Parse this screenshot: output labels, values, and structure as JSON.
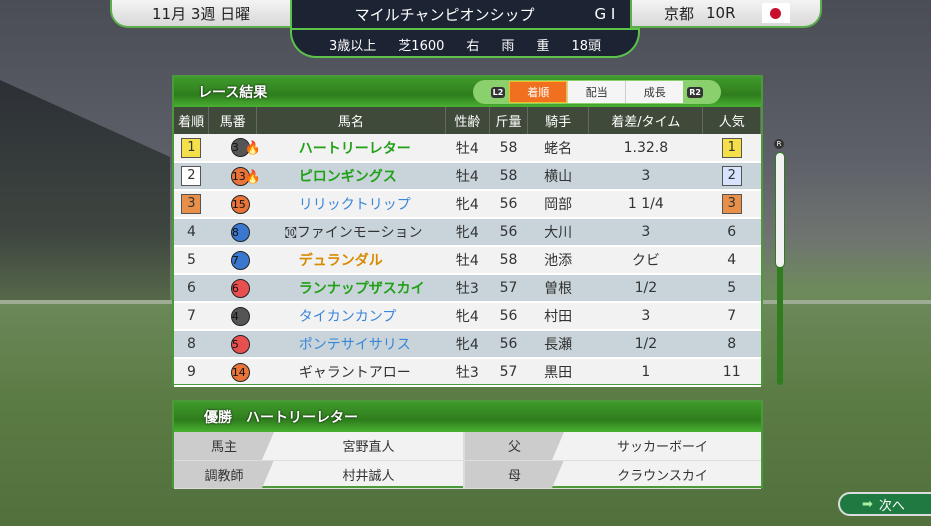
{
  "header": {
    "date": "11月 3週 日曜",
    "race_name": "マイルチャンピオンシップ",
    "grade": "G I",
    "venue": "京都",
    "race_no": "10R",
    "conditions": [
      "3歳以上",
      "芝1600",
      "右",
      "雨",
      "重",
      "18頭"
    ]
  },
  "results": {
    "title": "レース結果",
    "tabs": [
      {
        "label": "着順",
        "active": true
      },
      {
        "label": "配当",
        "active": false
      },
      {
        "label": "成長",
        "active": false
      }
    ],
    "l_button": "L2",
    "r_button": "R2",
    "columns": [
      "着順",
      "馬番",
      "馬名",
      "性齢",
      "斤量",
      "騎手",
      "着差/タイム",
      "人気"
    ],
    "rows": [
      {
        "rank": "1",
        "num": "3",
        "num_color": "#555555",
        "icon": "fire-horse-icon",
        "prefix": "",
        "name": "ハートリーレター",
        "style": "green",
        "sexage": "牡4",
        "weight": "58",
        "jockey": "蛯名",
        "margin": "1.32.8",
        "pop": "1"
      },
      {
        "rank": "2",
        "num": "13",
        "num_color": "#e8743a",
        "icon": "fire-horse-icon",
        "prefix": "",
        "name": "ピロンギングス",
        "style": "green",
        "sexage": "牡4",
        "weight": "58",
        "jockey": "横山",
        "margin": "3",
        "pop": "2"
      },
      {
        "rank": "3",
        "num": "15",
        "num_color": "#e8743a",
        "icon": "",
        "prefix": "",
        "name": "リリックトリップ",
        "style": "blue",
        "sexage": "牝4",
        "weight": "56",
        "jockey": "岡部",
        "margin": "1 1/4",
        "pop": "3"
      },
      {
        "rank": "4",
        "num": "8",
        "num_color": "#3a78d0",
        "icon": "",
        "prefix": "㉈",
        "name": "ファインモーション",
        "style": "plain",
        "sexage": "牝4",
        "weight": "56",
        "jockey": "大川",
        "margin": "3",
        "pop": "6"
      },
      {
        "rank": "5",
        "num": "7",
        "num_color": "#3a78d0",
        "icon": "",
        "prefix": "",
        "name": "デュランダル",
        "style": "orange",
        "sexage": "牡4",
        "weight": "58",
        "jockey": "池添",
        "margin": "クビ",
        "pop": "4"
      },
      {
        "rank": "6",
        "num": "6",
        "num_color": "#e85050",
        "icon": "",
        "prefix": "",
        "name": "ランナップザスカイ",
        "style": "green",
        "sexage": "牡3",
        "weight": "57",
        "jockey": "曽根",
        "margin": "1/2",
        "pop": "5"
      },
      {
        "rank": "7",
        "num": "4",
        "num_color": "#555555",
        "icon": "",
        "prefix": "",
        "name": "タイカンカンプ",
        "style": "blue",
        "sexage": "牝4",
        "weight": "56",
        "jockey": "村田",
        "margin": "3",
        "pop": "7"
      },
      {
        "rank": "8",
        "num": "5",
        "num_color": "#e85050",
        "icon": "",
        "prefix": "",
        "name": "ポンテサイサリス",
        "style": "blue",
        "sexage": "牝4",
        "weight": "56",
        "jockey": "長瀬",
        "margin": "1/2",
        "pop": "8"
      },
      {
        "rank": "9",
        "num": "14",
        "num_color": "#e8743a",
        "icon": "",
        "prefix": "",
        "name": "ギャラントアロー",
        "style": "plain",
        "sexage": "牡3",
        "weight": "57",
        "jockey": "黒田",
        "margin": "1",
        "pop": "11"
      }
    ]
  },
  "winner": {
    "label": "優勝",
    "name": "ハートリーレター",
    "owner_label": "馬主",
    "owner": "宮野直人",
    "sire_label": "父",
    "sire": "サッカーボーイ",
    "trainer_label": "調教師",
    "trainer": "村井誠人",
    "dam_label": "母",
    "dam": "クラウンスカイ"
  },
  "scroll_button": "R",
  "next_label": "次へ",
  "colors": {
    "accent": "#4a9a3a",
    "active_tab": "#f07020",
    "rank1": "#f5e04a",
    "rank2": "#ffffff",
    "rank3": "#e8904a",
    "pop2": "#d8e4ff"
  }
}
